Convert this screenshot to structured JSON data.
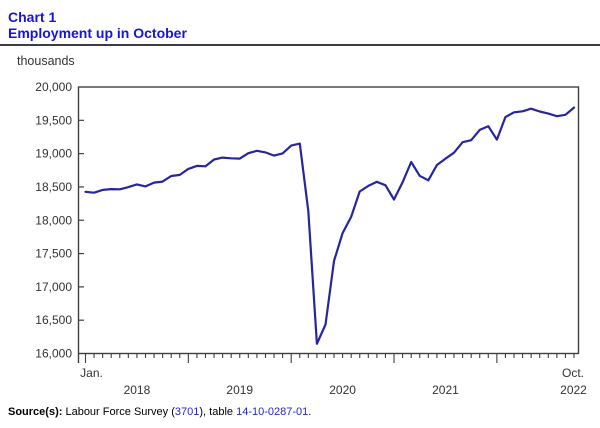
{
  "header": {
    "chart_label": "Chart 1",
    "title": "Employment up in October",
    "accent_color": "#1414e0"
  },
  "chart_data": {
    "type": "line",
    "title": "Employment up in October",
    "unit_label": "thousands",
    "x_range": "Jan. 2018 to Oct. 2022, monthly",
    "x_first_label": "Jan.",
    "x_last_label": "Oct.",
    "year_labels": [
      "2018",
      "2019",
      "2020",
      "2021",
      "2022"
    ],
    "ylim": [
      16000,
      20000
    ],
    "y_tick_step": 500,
    "y_tick_labels": [
      "16,000",
      "16,500",
      "17,000",
      "17,500",
      "18,000",
      "18,500",
      "19,000",
      "19,500",
      "20,000"
    ],
    "grid": false,
    "legend": "none",
    "line_color": "#26269e",
    "axis_color": "#3f3f3f",
    "label_color": "#333333",
    "values": [
      18427,
      18413,
      18455,
      18468,
      18465,
      18497,
      18538,
      18508,
      18565,
      18580,
      18664,
      18680,
      18771,
      18816,
      18810,
      18912,
      18940,
      18930,
      18925,
      19006,
      19043,
      19019,
      18970,
      19003,
      19120,
      19150,
      18139,
      16145,
      16435,
      17388,
      17807,
      18053,
      18431,
      18515,
      18577,
      18525,
      18312,
      18571,
      18874,
      18667,
      18599,
      18830,
      18924,
      19014,
      19171,
      19202,
      19356,
      19411,
      19211,
      19548,
      19620,
      19635,
      19675,
      19632,
      19601,
      19561,
      19583,
      19691
    ]
  },
  "source": {
    "prefix": "Source(s):",
    "before_link1": " Labour Force Survey (",
    "link1": "3701",
    "between_links": "), table ",
    "link2": "14-10-0287-01",
    "after_link2": ".",
    "link_color": "#2626cc"
  }
}
